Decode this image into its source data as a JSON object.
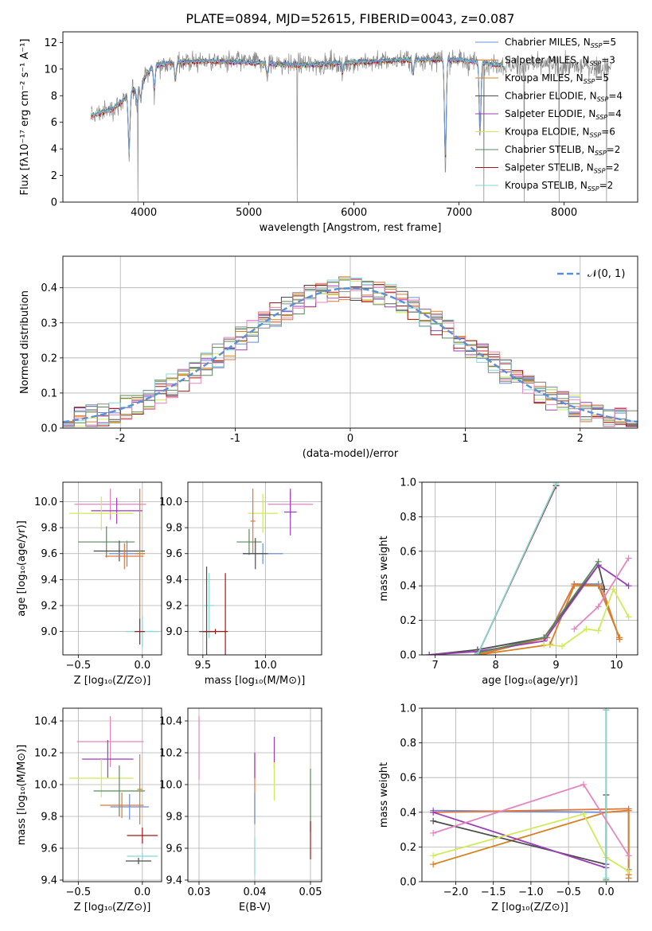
{
  "title": "PLATE=0894, MJD=52615, FIBERID=0043, z=0.087",
  "colors": {
    "chabrier_miles": "#6a8fd8",
    "salpeter_miles": "#e2763a",
    "kroupa_miles": "#d9801f",
    "chabrier_elodie": "#4d4d4d",
    "salpeter_elodie": "#9b3db8",
    "kroupa_elodie": "#d2ea5a",
    "chabrier_stelib": "#5a8a5a",
    "salpeter_stelib": "#a01818",
    "kroupa_stelib": "#86d6d6",
    "pink": "#e585c0",
    "gray": "#8a8a8a",
    "gauss": "#5b8fd6"
  },
  "legend": [
    {
      "key": "chabrier_miles",
      "label": "Chabrier MILES, N",
      "sub": "SSP",
      "suffix": "=5"
    },
    {
      "key": "salpeter_miles",
      "label": "Salpeter MILES, N",
      "sub": "SSP",
      "suffix": "=3"
    },
    {
      "key": "kroupa_miles",
      "label": "Kroupa MILES, N",
      "sub": "SSP",
      "suffix": "=5"
    },
    {
      "key": "chabrier_elodie",
      "label": "Chabrier ELODIE, N",
      "sub": "SSP",
      "suffix": "=4"
    },
    {
      "key": "salpeter_elodie",
      "label": "Salpeter ELODIE, N",
      "sub": "SSP",
      "suffix": "=4"
    },
    {
      "key": "kroupa_elodie",
      "label": "Kroupa ELODIE, N",
      "sub": "SSP",
      "suffix": "=6"
    },
    {
      "key": "chabrier_stelib",
      "label": "Chabrier STELIB, N",
      "sub": "SSP",
      "suffix": "=2"
    },
    {
      "key": "salpeter_stelib",
      "label": "Salpeter STELIB, N",
      "sub": "SSP",
      "suffix": "=2"
    },
    {
      "key": "kroupa_stelib",
      "label": "Kroupa STELIB, N",
      "sub": "SSP",
      "suffix": "=2"
    }
  ],
  "chart_data": [
    {
      "id": "spectrum",
      "type": "line",
      "xlabel": "wavelength [Angstrom, rest frame]",
      "ylabel": "Flux [fλ10⁻¹⁷ erg cm⁻² s⁻¹ A⁻¹]",
      "xlim": [
        3230,
        8700
      ],
      "ylim": [
        0,
        12.8
      ],
      "xticks": [
        4000,
        5000,
        6000,
        7000,
        8000
      ],
      "yticks": [
        0,
        2,
        4,
        6,
        8,
        10,
        12
      ],
      "x_range_data": [
        3500,
        8450
      ],
      "model_x_range": [
        3500,
        7420
      ],
      "continuum": [
        [
          3500,
          6.5
        ],
        [
          3700,
          7.0
        ],
        [
          3800,
          7.6
        ],
        [
          3900,
          8.4
        ],
        [
          4000,
          9.3
        ],
        [
          4100,
          10.3
        ],
        [
          4300,
          10.5
        ],
        [
          4600,
          10.6
        ],
        [
          5000,
          10.5
        ],
        [
          5500,
          10.3
        ],
        [
          6000,
          10.5
        ],
        [
          6500,
          10.7
        ],
        [
          7000,
          10.7
        ],
        [
          7400,
          10.3
        ],
        [
          8000,
          10.2
        ],
        [
          8450,
          10.1
        ]
      ],
      "absorption": [
        [
          3860,
          3.2
        ],
        [
          3935,
          7.2
        ],
        [
          3970,
          7.5
        ],
        [
          4100,
          8.3
        ],
        [
          4300,
          9.0
        ],
        [
          5175,
          9.4
        ],
        [
          5890,
          9.6
        ],
        [
          6563,
          9.6
        ],
        [
          6870,
          2.0
        ],
        [
          7200,
          4.5
        ]
      ]
    },
    {
      "id": "residuals",
      "type": "bar",
      "xlabel": "(data-model)/error",
      "ylabel": "Normed distribution",
      "xlim": [
        -2.5,
        2.5
      ],
      "ylim": [
        0,
        0.49
      ],
      "xticks": [
        -2,
        -1,
        0,
        1,
        2
      ],
      "yticks": [
        0.0,
        0.1,
        0.2,
        0.3,
        0.4
      ],
      "bin_width": 0.1,
      "gauss_label": "𝒩(0, 1)",
      "series_keys": [
        "chabrier_miles",
        "salpeter_miles",
        "kroupa_miles",
        "chabrier_elodie",
        "salpeter_elodie",
        "kroupa_elodie",
        "chabrier_stelib",
        "salpeter_stelib",
        "kroupa_stelib"
      ]
    },
    {
      "id": "age_vs_Z",
      "type": "errorbar",
      "xlabel": "Z [log₁₀(Z/Z⊙)]",
      "ylabel": "age  [log₁₀(age/yr)]",
      "xlim": [
        -0.62,
        0.15
      ],
      "ylim": [
        8.82,
        10.15
      ],
      "xticks": [
        -0.5,
        0.0
      ],
      "yticks": [
        9.0,
        9.2,
        9.4,
        9.6,
        9.8,
        10.0
      ],
      "xticklabels": [
        "−0.5",
        "0.0"
      ],
      "yticklabels": [
        "9.0",
        "9.2",
        "9.4",
        "9.6",
        "9.8",
        "10.0"
      ],
      "points": [
        {
          "c": "pink",
          "x": -0.25,
          "xe": 0.28,
          "y": 9.98,
          "ye": 0.12
        },
        {
          "c": "salpeter_elodie",
          "x": -0.2,
          "xe": 0.2,
          "y": 9.93,
          "ye": 0.1
        },
        {
          "c": "kroupa_elodie",
          "x": -0.32,
          "xe": 0.25,
          "y": 9.91,
          "ye": 0.13
        },
        {
          "c": "chabrier_stelib",
          "x": -0.28,
          "xe": 0.22,
          "y": 9.69,
          "ye": 0.12
        },
        {
          "c": "chabrier_elodie",
          "x": -0.18,
          "xe": 0.2,
          "y": 9.62,
          "ye": 0.08
        },
        {
          "c": "chabrier_miles",
          "x": -0.12,
          "xe": 0.14,
          "y": 9.6,
          "ye": 0.1
        },
        {
          "c": "salpeter_miles",
          "x": -0.14,
          "xe": 0.15,
          "y": 9.58,
          "ye": 0.1
        },
        {
          "c": "kroupa_miles",
          "x": -0.02,
          "xe": 0.04,
          "y": 9.6,
          "ye": 0.5
        },
        {
          "c": "kroupa_stelib",
          "x": 0.0,
          "xe": 0.13,
          "y": 9.0,
          "ye": 0.12
        },
        {
          "c": "salpeter_stelib",
          "x": -0.02,
          "xe": 0.04,
          "y": 9.0,
          "ye": 0.1
        }
      ]
    },
    {
      "id": "age_vs_mass",
      "type": "errorbar",
      "xlabel": "mass [log₁₀(M/M⊙)]",
      "ylabel": "",
      "xlim": [
        9.38,
        10.45
      ],
      "ylim": [
        8.82,
        10.15
      ],
      "xticks": [
        9.5,
        10.0
      ],
      "yticks": [
        9.0,
        9.2,
        9.4,
        9.6,
        9.8,
        10.0
      ],
      "xticklabels": [
        "9.5",
        "10.0"
      ],
      "yticklabels": [
        "9.0",
        "9.2",
        "9.4",
        "9.6",
        "9.8",
        "10.0"
      ],
      "points": [
        {
          "c": "pink",
          "x": 10.2,
          "xe": 0.18,
          "y": 9.98,
          "ye": 0.1
        },
        {
          "c": "salpeter_elodie",
          "x": 10.2,
          "xe": 0.05,
          "y": 9.92,
          "ye": 0.18
        },
        {
          "c": "kroupa_elodie",
          "x": 9.98,
          "xe": 0.12,
          "y": 9.91,
          "ye": 0.15
        },
        {
          "c": "salpeter_miles",
          "x": 9.9,
          "xe": 0.02,
          "y": 9.85,
          "ye": 0.25
        },
        {
          "c": "chabrier_stelib",
          "x": 9.87,
          "xe": 0.1,
          "y": 9.69,
          "ye": 0.1
        },
        {
          "c": "chabrier_miles",
          "x": 9.98,
          "xe": 0.16,
          "y": 9.6,
          "ye": 0.08
        },
        {
          "c": "chabrier_elodie",
          "x": 9.92,
          "xe": 0.1,
          "y": 9.6,
          "ye": 0.12
        },
        {
          "c": "kroupa_stelib",
          "x": 9.55,
          "xe": 0.04,
          "y": 9.2,
          "ye": 0.25
        },
        {
          "c": "chabrier_elodie",
          "x": 9.53,
          "xe": 0.06,
          "y": 9.0,
          "ye": 0.5
        },
        {
          "c": "salpeter_stelib",
          "x": 9.6,
          "xe": 0.1,
          "y": 9.0,
          "ye": 0.02
        },
        {
          "c": "salpeter_stelib",
          "x": 9.68,
          "xe": 0.0,
          "y": 9.1,
          "ye": 0.35
        }
      ]
    },
    {
      "id": "weight_vs_age",
      "type": "line",
      "xlabel": "age  [log₁₀(age/yr)]",
      "ylabel": "mass weight",
      "xlim": [
        6.78,
        10.35
      ],
      "ylim": [
        0,
        1.0
      ],
      "xticks": [
        7,
        8,
        9,
        10
      ],
      "yticks": [
        0.0,
        0.2,
        0.4,
        0.6,
        0.8,
        1.0
      ],
      "xticklabels": [
        "7",
        "8",
        "9",
        "10"
      ],
      "yticklabels": [
        "0.0",
        "0.2",
        "0.4",
        "0.6",
        "0.8",
        "1.0"
      ],
      "series": [
        {
          "c": "chabrier_miles",
          "x": [
            7.7,
            8.85,
            9.3,
            9.7,
            10.05
          ],
          "y": [
            0.0,
            0.1,
            0.41,
            0.41,
            0.1
          ]
        },
        {
          "c": "salpeter_miles",
          "x": [
            7.7,
            8.85,
            9.3,
            9.75,
            10.05
          ],
          "y": [
            0.0,
            0.1,
            0.41,
            0.4,
            0.09
          ]
        },
        {
          "c": "kroupa_miles",
          "x": [
            7.7,
            8.9,
            9.3,
            9.7,
            10.05
          ],
          "y": [
            0.0,
            0.06,
            0.4,
            0.4,
            0.1
          ]
        },
        {
          "c": "chabrier_elodie",
          "x": [
            6.9,
            7.7,
            8.8,
            9.7,
            9.8
          ],
          "y": [
            0.0,
            0.03,
            0.1,
            0.52,
            0.38
          ]
        },
        {
          "c": "salpeter_elodie",
          "x": [
            6.9,
            7.7,
            8.8,
            9.7,
            10.2
          ],
          "y": [
            0.0,
            0.02,
            0.08,
            0.52,
            0.4
          ]
        },
        {
          "c": "kroupa_elodie",
          "x": [
            8.8,
            9.1,
            9.5,
            9.7,
            9.95,
            10.2
          ],
          "y": [
            0.06,
            0.05,
            0.15,
            0.14,
            0.38,
            0.22
          ]
        },
        {
          "c": "chabrier_stelib",
          "x": [
            7.7,
            8.8,
            9.7
          ],
          "y": [
            0.01,
            0.1,
            0.54
          ]
        },
        {
          "c": "salpeter_stelib",
          "x": [
            7.7,
            9.0
          ],
          "y": [
            0.0,
            0.98
          ]
        },
        {
          "c": "kroupa_stelib",
          "x": [
            7.7,
            9.0
          ],
          "y": [
            0.0,
            0.99
          ]
        },
        {
          "c": "pink",
          "x": [
            9.3,
            9.7,
            10.2
          ],
          "y": [
            0.15,
            0.28,
            0.56
          ]
        }
      ]
    },
    {
      "id": "mass_vs_Z",
      "type": "errorbar",
      "xlabel": "Z [log₁₀(Z/Z⊙)]",
      "ylabel": "mass [log₁₀(M/M⊙)]",
      "xlim": [
        -0.62,
        0.15
      ],
      "ylim": [
        9.39,
        10.48
      ],
      "xticks": [
        -0.5,
        0.0
      ],
      "yticks": [
        9.4,
        9.6,
        9.8,
        10.0,
        10.2,
        10.4
      ],
      "xticklabels": [
        "−0.5",
        "0.0"
      ],
      "yticklabels": [
        "9.4",
        "9.6",
        "9.8",
        "10.0",
        "10.2",
        "10.4"
      ],
      "points": [
        {
          "c": "pink",
          "x": -0.25,
          "xe": 0.26,
          "y": 10.27,
          "ye": 0.16
        },
        {
          "c": "salpeter_elodie",
          "x": -0.27,
          "xe": 0.2,
          "y": 10.16,
          "ye": 0.12
        },
        {
          "c": "kroupa_elodie",
          "x": -0.32,
          "xe": 0.25,
          "y": 10.04,
          "ye": 0.12
        },
        {
          "c": "chabrier_stelib",
          "x": -0.18,
          "xe": 0.2,
          "y": 9.96,
          "ye": 0.16
        },
        {
          "c": "salpeter_miles",
          "x": -0.16,
          "xe": 0.17,
          "y": 9.87,
          "ye": 0.08
        },
        {
          "c": "chabrier_miles",
          "x": -0.1,
          "xe": 0.15,
          "y": 9.86,
          "ye": 0.08
        },
        {
          "c": "kroupa_miles",
          "x": -0.02,
          "xe": 0.02,
          "y": 9.97,
          "ye": 0.22
        },
        {
          "c": "salpeter_stelib",
          "x": 0.0,
          "xe": 0.12,
          "y": 9.68,
          "ye": 0.05
        },
        {
          "c": "kroupa_stelib",
          "x": 0.0,
          "xe": 0.12,
          "y": 9.55,
          "ye": 0.02
        },
        {
          "c": "chabrier_elodie",
          "x": -0.03,
          "xe": 0.1,
          "y": 9.52,
          "ye": 0.02
        }
      ]
    },
    {
      "id": "mass_vs_ebv",
      "type": "errorbar",
      "xlabel": "E(B-V)",
      "ylabel": "",
      "xlim": [
        0.028,
        0.052
      ],
      "ylim": [
        9.39,
        10.48
      ],
      "xticks": [
        0.03,
        0.04,
        0.05
      ],
      "yticks": [
        9.4,
        9.6,
        9.8,
        10.0,
        10.2,
        10.4
      ],
      "xticklabels": [
        "0.03",
        "0.04",
        "0.05"
      ],
      "yticklabels": [
        "9.4",
        "9.6",
        "9.8",
        "10.0",
        "10.2",
        "10.4"
      ],
      "points": [
        {
          "c": "pink",
          "x": 0.03,
          "xe": 0.0,
          "y": 10.23,
          "ye": 0.2
        },
        {
          "c": "salpeter_elodie",
          "x": 0.0435,
          "xe": 0.0,
          "y": 10.2,
          "ye": 0.1
        },
        {
          "c": "kroupa_elodie",
          "x": 0.0435,
          "xe": 0.0,
          "y": 10.02,
          "ye": 0.12
        },
        {
          "c": "salpeter_miles",
          "x": 0.04,
          "xe": 0.0,
          "y": 9.98,
          "ye": 0.22
        },
        {
          "c": "chabrier_miles",
          "x": 0.04,
          "xe": 0.0,
          "y": 9.85,
          "ye": 0.1
        },
        {
          "c": "salpeter_elodie",
          "x": 0.04,
          "xe": 0.0,
          "y": 10.12,
          "ye": 0.08
        },
        {
          "c": "chabrier_stelib",
          "x": 0.05,
          "xe": 0.0,
          "y": 9.9,
          "ye": 0.2
        },
        {
          "c": "salpeter_stelib",
          "x": 0.05,
          "xe": 0.0,
          "y": 9.65,
          "ye": 0.12
        },
        {
          "c": "kroupa_stelib",
          "x": 0.04,
          "xe": 0.0,
          "y": 9.55,
          "ye": 0.12
        }
      ]
    },
    {
      "id": "weight_vs_Z",
      "type": "line",
      "xlabel": "Z [log₁₀(Z/Z⊙)]",
      "ylabel": "mass weight",
      "xlim": [
        -2.45,
        0.42
      ],
      "ylim": [
        0,
        1.0
      ],
      "xticks": [
        -2.0,
        -1.5,
        -1.0,
        -0.5,
        0.0
      ],
      "yticks": [
        0.0,
        0.2,
        0.4,
        0.6,
        0.8,
        1.0
      ],
      "xticklabels": [
        "−2.0",
        "−1.5",
        "−1.0",
        "−0.5",
        "0.0"
      ],
      "yticklabels": [
        "0.0",
        "0.2",
        "0.4",
        "0.6",
        "0.8",
        "1.0"
      ],
      "series": [
        {
          "c": "chabrier_miles",
          "x": [
            -2.3,
            0.0,
            0.3,
            0.3
          ],
          "y": [
            0.41,
            0.4,
            0.41,
            0.07
          ]
        },
        {
          "c": "salpeter_miles",
          "x": [
            -2.3,
            0.3,
            0.3
          ],
          "y": [
            0.4,
            0.42,
            0.04
          ]
        },
        {
          "c": "kroupa_miles",
          "x": [
            -2.3,
            0.0,
            0.3,
            0.3
          ],
          "y": [
            0.1,
            0.4,
            0.41,
            0.02
          ]
        },
        {
          "c": "chabrier_elodie",
          "x": [
            -2.3,
            0.0,
            0.0
          ],
          "y": [
            0.35,
            0.1,
            0.5
          ]
        },
        {
          "c": "salpeter_elodie",
          "x": [
            -2.3,
            0.0,
            0.0
          ],
          "y": [
            0.4,
            0.08,
            0.1
          ]
        },
        {
          "c": "kroupa_elodie",
          "x": [
            -2.3,
            -0.3,
            0.0,
            0.3
          ],
          "y": [
            0.15,
            0.39,
            0.14,
            0.06
          ]
        },
        {
          "c": "chabrier_stelib",
          "x": [
            0.0,
            0.0
          ],
          "y": [
            0.01,
            0.99
          ]
        },
        {
          "c": "kroupa_stelib",
          "x": [
            0.0,
            0.0
          ],
          "y": [
            0.02,
            0.99
          ]
        },
        {
          "c": "pink",
          "x": [
            -2.3,
            -0.3,
            0.3
          ],
          "y": [
            0.28,
            0.56,
            0.15
          ]
        }
      ]
    }
  ]
}
